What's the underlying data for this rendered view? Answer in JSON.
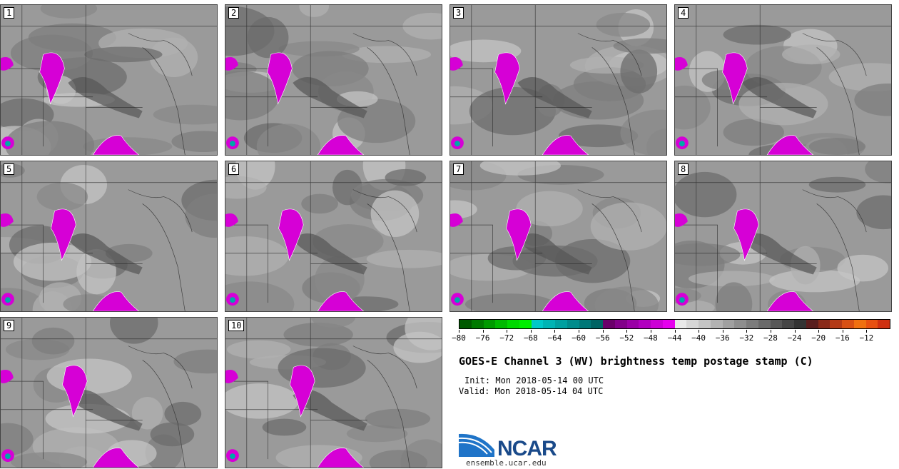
{
  "panels": [
    {
      "label": "1"
    },
    {
      "label": "2"
    },
    {
      "label": "3"
    },
    {
      "label": "4"
    },
    {
      "label": "5"
    },
    {
      "label": "6"
    },
    {
      "label": "7"
    },
    {
      "label": "8"
    },
    {
      "label": "9"
    },
    {
      "label": "10"
    }
  ],
  "colorbar": {
    "colors": [
      "#005a00",
      "#007a00",
      "#009a00",
      "#00ba00",
      "#00d800",
      "#00ee00",
      "#00c8c8",
      "#00b4b4",
      "#00a0a0",
      "#008c8c",
      "#007878",
      "#006464",
      "#6a006a",
      "#82008a",
      "#9a00a6",
      "#b200c0",
      "#cc00d6",
      "#e600ee",
      "#e8e8e8",
      "#d6d6d6",
      "#c4c4c4",
      "#b2b2b2",
      "#a0a0a0",
      "#8e8e8e",
      "#7c7c7c",
      "#6a6a6a",
      "#585858",
      "#464646",
      "#343434",
      "#5a1e1e",
      "#8a2a1a",
      "#b43a16",
      "#d85014",
      "#f07010",
      "#e85010",
      "#d03010"
    ],
    "tick_labels": [
      "−80",
      "−76",
      "−72",
      "−68",
      "−64",
      "−60",
      "−56",
      "−52",
      "−48",
      "−44",
      "−40",
      "−36",
      "−32",
      "−28",
      "−24",
      "−20",
      "−16",
      "−12"
    ]
  },
  "title": "GOES-E Channel 3 (WV) brightness temp postage stamp (C)",
  "init": "Init: Mon 2018-05-14 00 UTC",
  "valid": "Valid: Mon 2018-05-14 04 UTC",
  "logo": {
    "name": "NCAR",
    "url": "ensemble.ucar.edu"
  },
  "colors": {
    "magenta": "#d600d6",
    "cyan": "#00a8a8",
    "dark_gray": "#4a4a4a"
  }
}
